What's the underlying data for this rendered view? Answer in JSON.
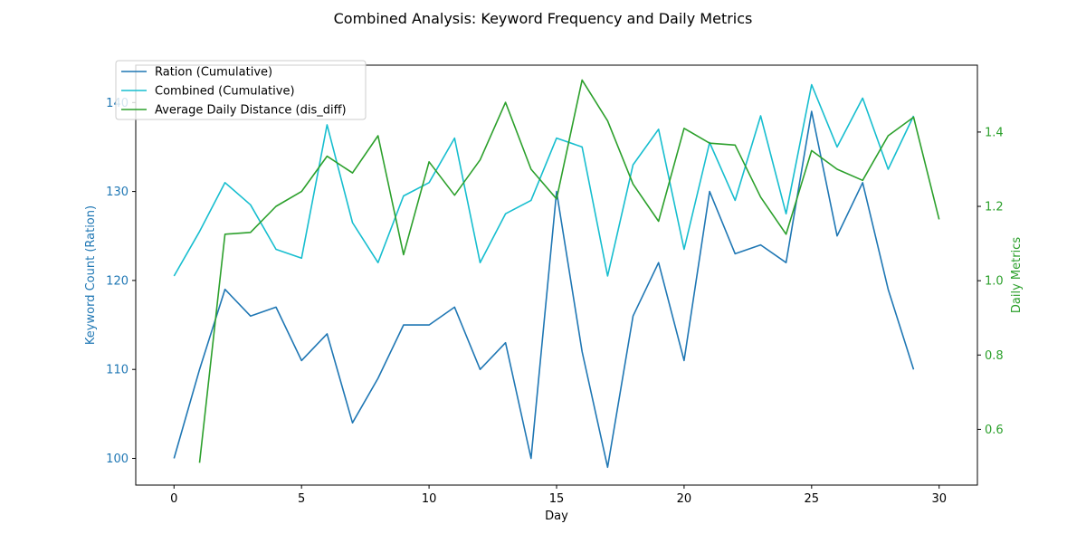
{
  "chart_data": {
    "type": "line",
    "title": "Combined Analysis: Keyword Frequency and Daily Metrics",
    "xlabel": "Day",
    "ylabel_left": "Keyword Count (Ration)",
    "ylabel_right": "Daily Metrics",
    "xlim": [
      -1.5,
      31.5
    ],
    "ylim_left": [
      97.0,
      144.2
    ],
    "ylim_right": [
      0.45,
      1.58
    ],
    "x_ticks": [
      0,
      5,
      10,
      15,
      20,
      25,
      30
    ],
    "y_ticks_left": [
      100,
      110,
      120,
      130,
      140
    ],
    "y_ticks_right": [
      0.6,
      0.8,
      1.0,
      1.2,
      1.4
    ],
    "grid": false,
    "legend_position": "upper-left",
    "colors": {
      "left_axis": "#1f77b4",
      "right_axis": "#2ca02c"
    },
    "series": [
      {
        "name": "Ration (Cumulative)",
        "axis": "left",
        "color": "#1f77b4",
        "x": [
          0,
          1,
          2,
          3,
          4,
          5,
          6,
          7,
          8,
          9,
          10,
          11,
          12,
          13,
          14,
          15,
          16,
          17,
          18,
          19,
          20,
          21,
          22,
          23,
          24,
          25,
          26,
          27,
          28,
          29
        ],
        "values": [
          100,
          110,
          119,
          116,
          117,
          111,
          114,
          104,
          109,
          115,
          115,
          117,
          110,
          113,
          100,
          130,
          112,
          99,
          116,
          122,
          111,
          130,
          123,
          124,
          122,
          139,
          125,
          131,
          119,
          110
        ]
      },
      {
        "name": "Combined (Cumulative)",
        "axis": "left",
        "color": "#17becf",
        "x": [
          0,
          1,
          2,
          3,
          4,
          5,
          6,
          7,
          8,
          9,
          10,
          11,
          12,
          13,
          14,
          15,
          16,
          17,
          18,
          19,
          20,
          21,
          22,
          23,
          24,
          25,
          26,
          27,
          28,
          29
        ],
        "values": [
          120.5,
          125.5,
          131,
          128.5,
          123.5,
          122.5,
          137.5,
          126.5,
          122,
          129.5,
          131,
          136,
          122,
          127.5,
          129,
          136,
          135,
          120.5,
          133,
          137,
          123.5,
          135.5,
          129,
          138.5,
          127.5,
          142,
          135,
          140.5,
          132.5,
          138.5
        ]
      },
      {
        "name": "Average Daily Distance (dis_diff)",
        "axis": "right",
        "color": "#2ca02c",
        "x": [
          1,
          2,
          3,
          4,
          5,
          6,
          7,
          8,
          9,
          10,
          11,
          12,
          13,
          14,
          15,
          16,
          17,
          18,
          19,
          20,
          21,
          22,
          23,
          24,
          25,
          26,
          27,
          28,
          29,
          30
        ],
        "values": [
          0.51,
          1.125,
          1.13,
          1.2,
          1.24,
          1.335,
          1.29,
          1.39,
          1.07,
          1.32,
          1.23,
          1.325,
          1.48,
          1.3,
          1.22,
          1.54,
          1.43,
          1.26,
          1.16,
          1.41,
          1.37,
          1.365,
          1.225,
          1.125,
          1.35,
          1.3,
          1.27,
          1.39,
          1.44,
          1.165
        ]
      }
    ]
  }
}
